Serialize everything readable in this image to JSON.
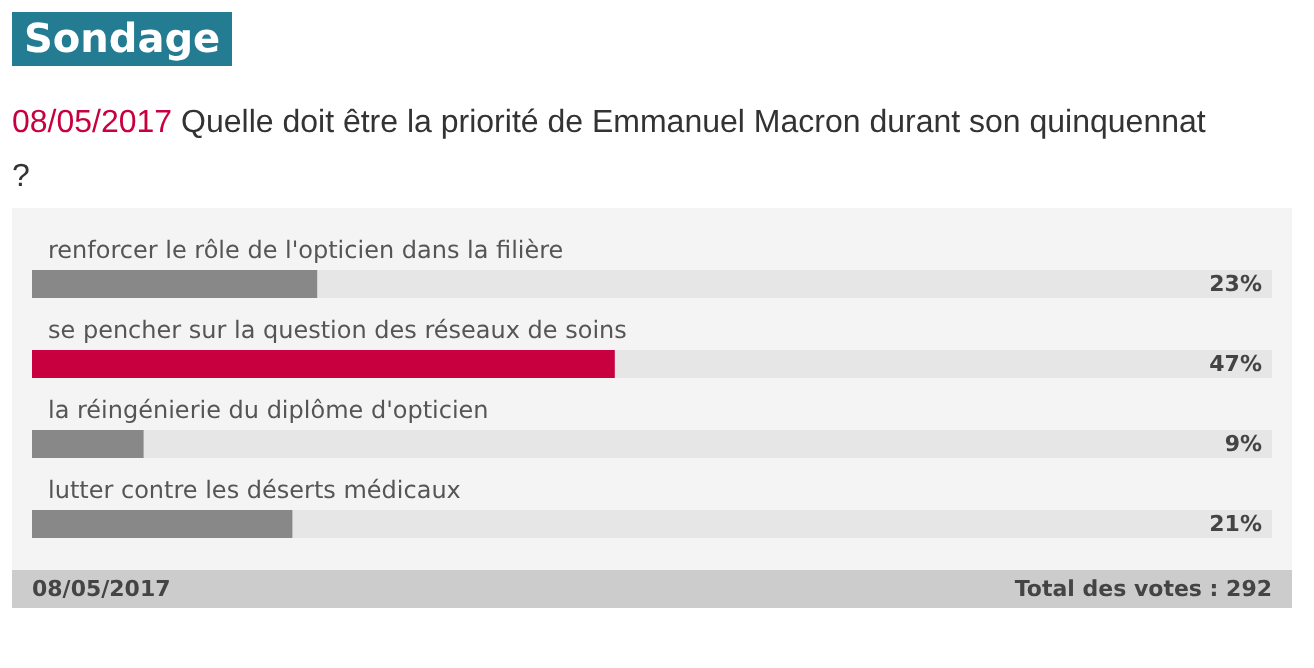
{
  "chart_data": {
    "type": "bar",
    "orientation": "horizontal",
    "title": "Quelle doit être la priorité de Emmanuel Macron durant son quinquennat ?",
    "annotations": [
      "Sondage",
      "08/05/2017",
      "08/05/2017",
      "Total des votes : 292"
    ],
    "categories": [
      "renforcer le rôle de l'opticien dans la filière",
      "se pencher sur la question des réseaux de soins",
      "la réingénierie du diplôme d'opticien",
      "lutter contre les déserts médicaux"
    ],
    "values": [
      23,
      47,
      9,
      21
    ],
    "colors": [
      "#888888",
      "#c8003f",
      "#888888",
      "#888888"
    ],
    "value_labels": [
      "23%",
      "47%",
      "9%",
      "21%"
    ],
    "xlim": [
      0,
      100
    ]
  }
}
